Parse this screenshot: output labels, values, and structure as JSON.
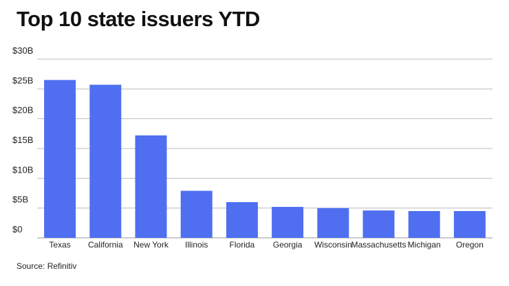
{
  "page": {
    "title": "Top 10 state issuers YTD",
    "source": "Source: Refinitiv"
  },
  "chart_data": {
    "type": "bar",
    "title": "Top 10 state issuers YTD",
    "xlabel": "",
    "ylabel": "",
    "categories": [
      "Texas",
      "California",
      "New York",
      "Illinois",
      "Florida",
      "Georgia",
      "Wisconsin",
      "Massachusetts",
      "Michigan",
      "Oregon"
    ],
    "values": [
      26.5,
      25.7,
      17.2,
      7.9,
      6.0,
      5.2,
      5.0,
      4.6,
      4.5,
      4.5
    ],
    "unit": "$B",
    "ylim": [
      0,
      30
    ],
    "yticks": [
      0,
      5,
      10,
      15,
      20,
      25,
      30
    ],
    "ytick_labels": [
      "$0",
      "$5B",
      "$10B",
      "$15B",
      "$20B",
      "$25B",
      "$30B"
    ],
    "bar_color": "#4f6ff0",
    "grid": true,
    "legend": "none"
  }
}
